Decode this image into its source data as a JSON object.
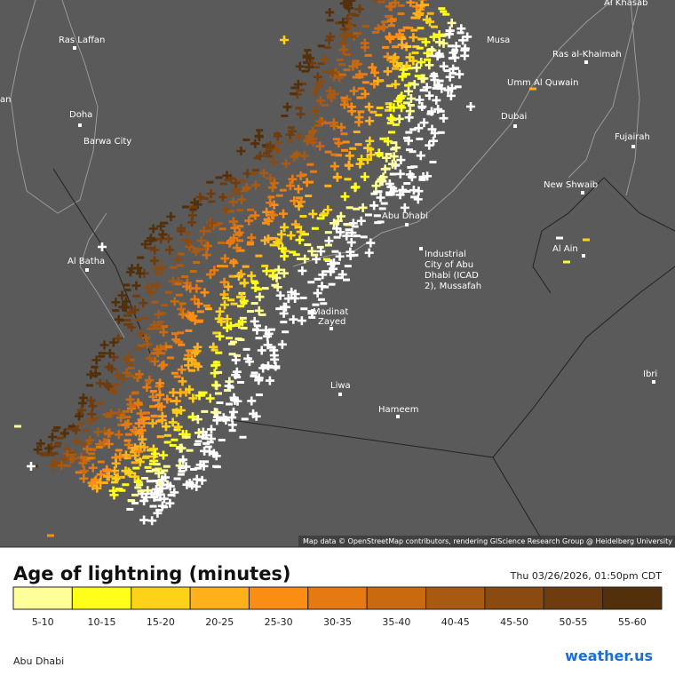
{
  "map": {
    "labels": [
      {
        "text": "Al Khasab"
      },
      {
        "text": "Ras Laffan"
      },
      {
        "text": "Ras al-Khaimah"
      },
      {
        "text": "Musa"
      },
      {
        "text": "Umm Al Quwain"
      },
      {
        "text": "Dubai"
      },
      {
        "text": "Doha"
      },
      {
        "text": "Barwa City"
      },
      {
        "text": "Fujairah"
      },
      {
        "text": "New Shwaib"
      },
      {
        "text": "Abu Dhabi"
      },
      {
        "text": "Al Batha"
      },
      {
        "text": "Al Ain"
      },
      {
        "text": "Madinat"
      },
      {
        "text": "Zayed"
      },
      {
        "text": "Liwa"
      },
      {
        "text": "Hameem"
      },
      {
        "text": "Ibri"
      },
      {
        "text": "an"
      },
      {
        "text": "Industrial"
      },
      {
        "text": "City of Abu"
      },
      {
        "text": "Dhabi (ICAD"
      },
      {
        "text": "2), Mussafah"
      }
    ],
    "attribution": "Map data © OpenStreetMap contributors, rendering GIScience Research Group @ Heidelberg University"
  },
  "legend": {
    "title": "Age of lightning (minutes)",
    "timestamp": "Thu 03/26/2026, 01:50pm CDT",
    "items": [
      {
        "label": "5-10",
        "color": "#ffff99"
      },
      {
        "label": "10-15",
        "color": "#ffff1a"
      },
      {
        "label": "15-20",
        "color": "#ffd21a"
      },
      {
        "label": "20-25",
        "color": "#ffb01a"
      },
      {
        "label": "25-30",
        "color": "#fb8c14"
      },
      {
        "label": "30-35",
        "color": "#e67a12"
      },
      {
        "label": "35-40",
        "color": "#c96a10"
      },
      {
        "label": "40-45",
        "color": "#a85a12"
      },
      {
        "label": "45-50",
        "color": "#8a4a10"
      },
      {
        "label": "50-55",
        "color": "#6e3c0e"
      },
      {
        "label": "55-60",
        "color": "#52300c"
      }
    ]
  },
  "footer": {
    "location": "Abu Dhabi",
    "brand": "weather.us"
  }
}
